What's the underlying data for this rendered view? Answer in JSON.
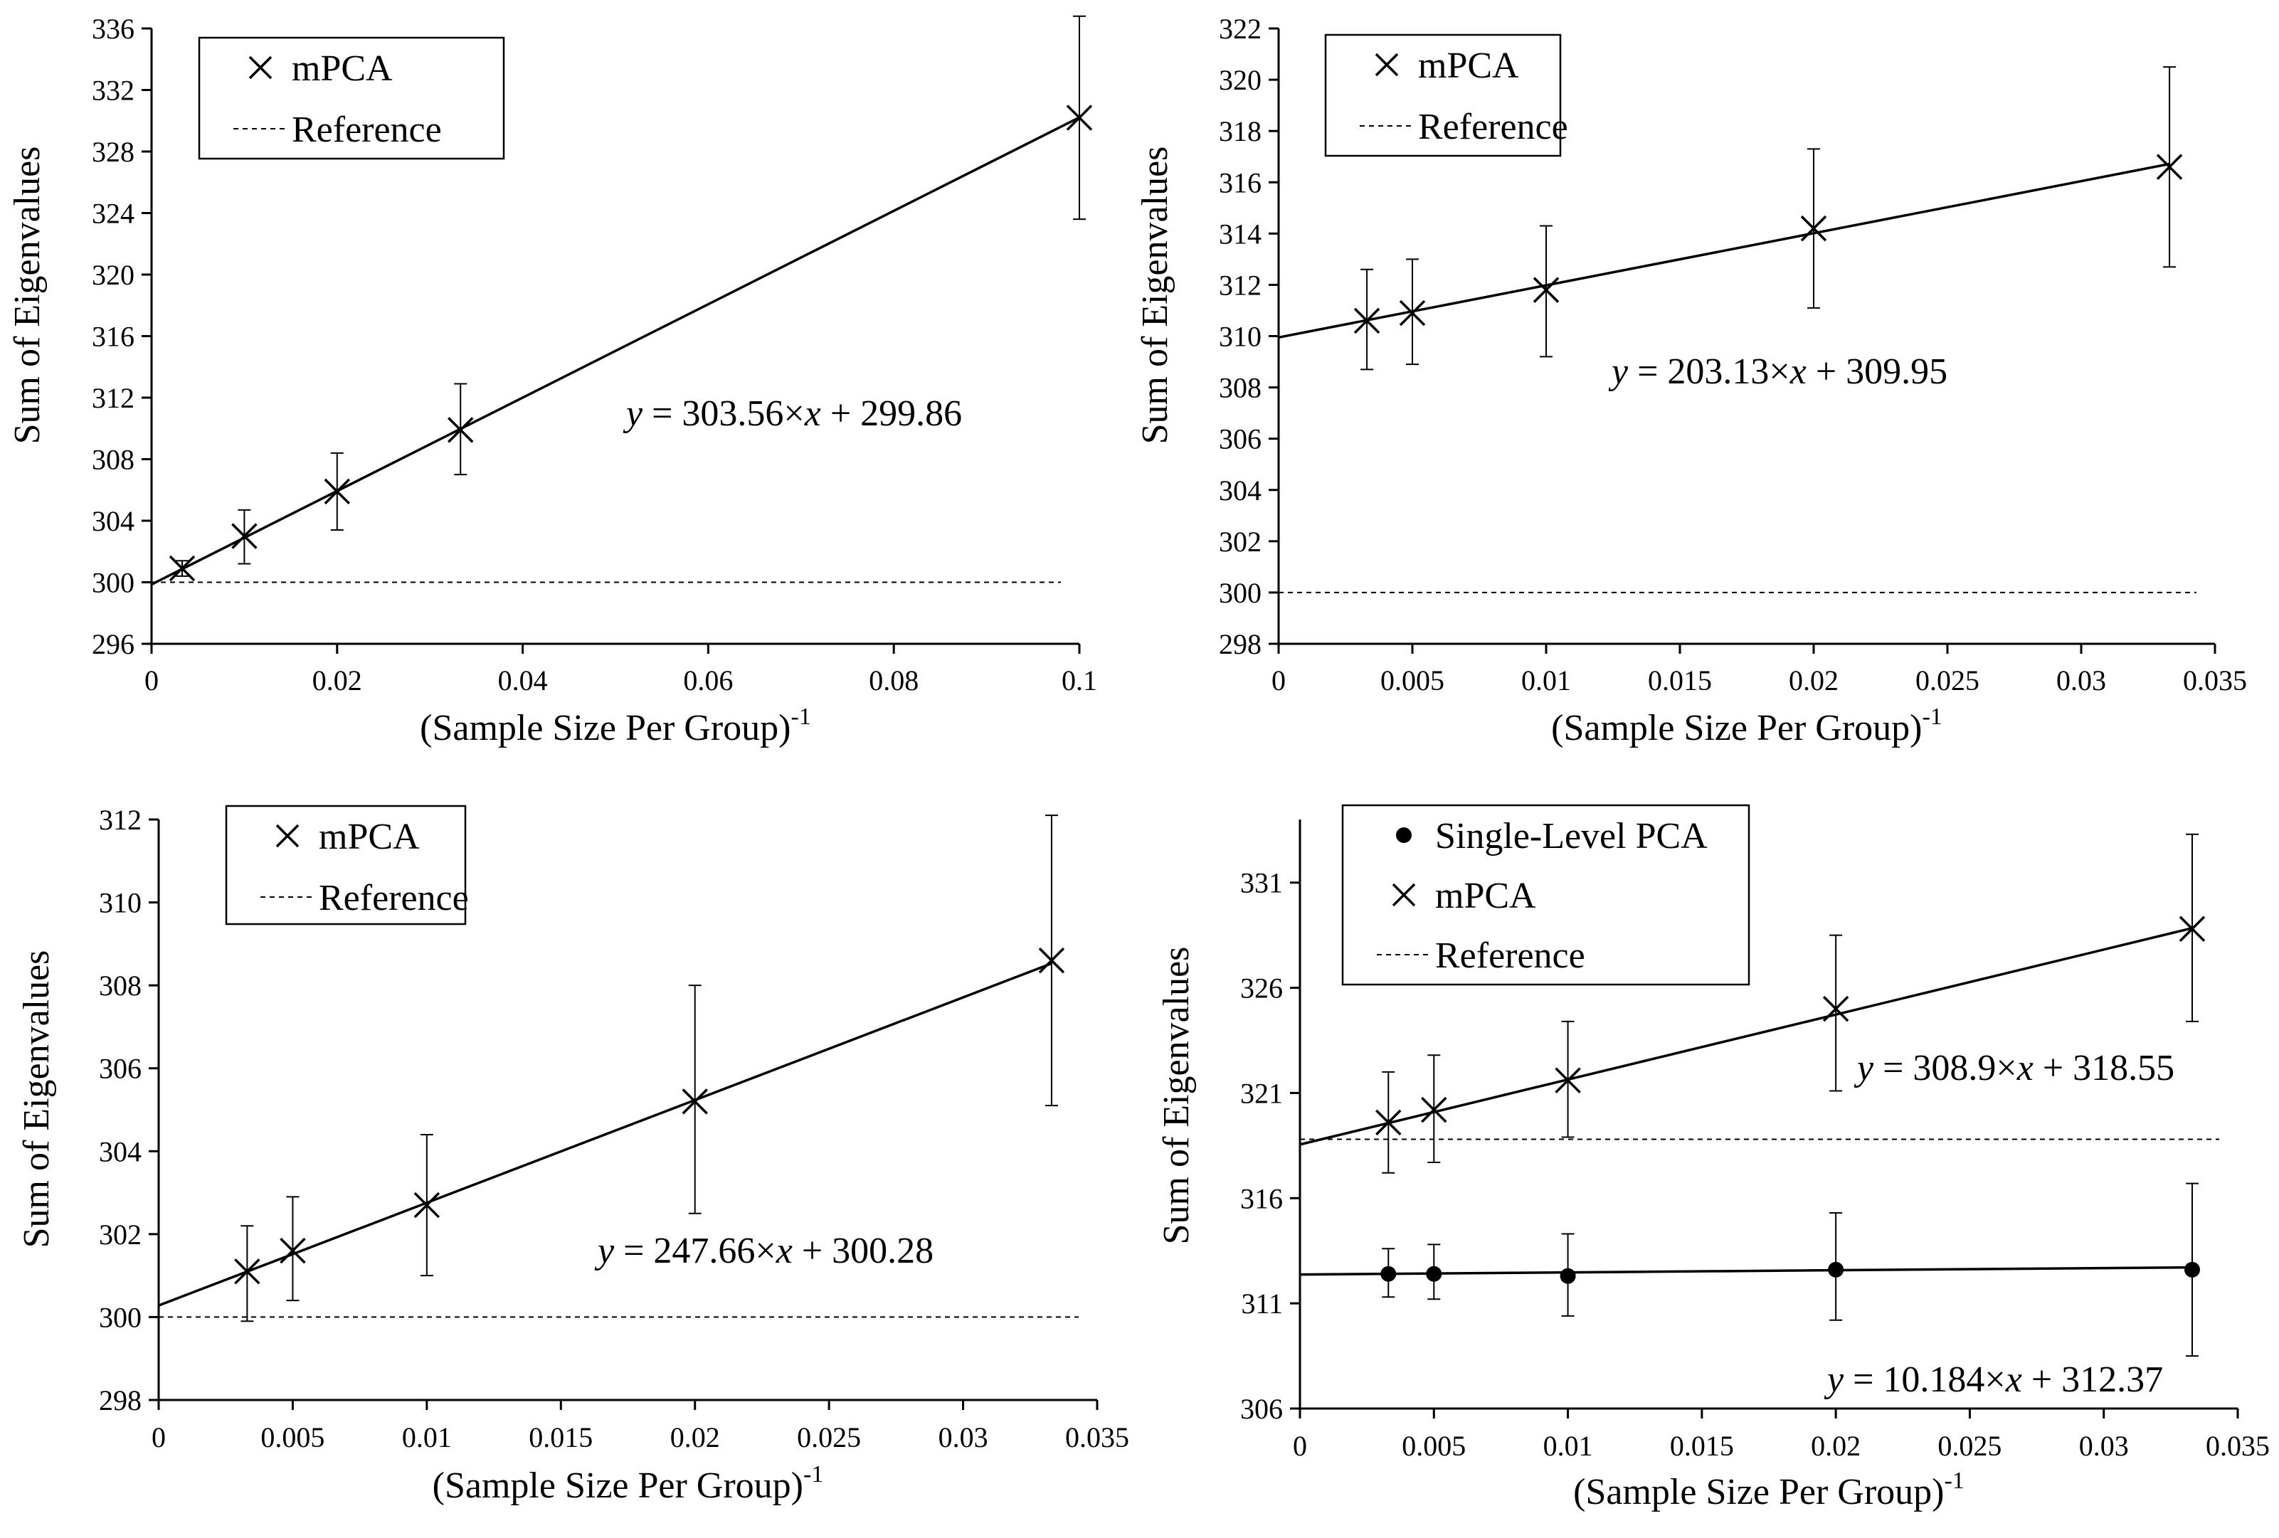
{
  "chart_data": [
    {
      "type": "scatter",
      "xlabel": "(Sample Size Per Group)",
      "xlabel_exponent": "-1",
      "ylabel": "Sum of Eigenvalues",
      "xlim": [
        0,
        0.1
      ],
      "ylim": [
        296,
        336
      ],
      "xticks": [
        0,
        0.02,
        0.04,
        0.06,
        0.08,
        0.1
      ],
      "xtick_labels": [
        "0",
        "0.02",
        "0.04",
        "0.06",
        "0.08",
        "0.1"
      ],
      "yticks": [
        296,
        300,
        304,
        308,
        312,
        316,
        320,
        324,
        328,
        332,
        336
      ],
      "ytick_labels": [
        "296",
        "300",
        "304",
        "308",
        "312",
        "316",
        "320",
        "324",
        "328",
        "332",
        "336"
      ],
      "legend": [
        {
          "label": "mPCA",
          "marker": "x"
        },
        {
          "label": "Reference",
          "marker": "dashed"
        }
      ],
      "legend_position": "top-left",
      "reference": 300,
      "series": [
        {
          "name": "mPCA",
          "marker": "x",
          "x": [
            0.0033,
            0.01,
            0.02,
            0.0333,
            0.1
          ],
          "y": [
            300.9,
            303.0,
            305.9,
            309.9,
            330.2
          ],
          "err_low": [
            300.4,
            301.2,
            303.4,
            307.0,
            323.6
          ],
          "err_high": [
            301.4,
            304.7,
            308.4,
            312.9,
            336.8
          ],
          "fit": {
            "slope": 303.56,
            "intercept": 299.86
          },
          "equation": {
            "lhs": "y",
            "mid": " = 303.56×",
            "var": "x",
            "rhs": " + 299.86"
          }
        }
      ]
    },
    {
      "type": "scatter",
      "xlabel": "(Sample Size Per Group)",
      "xlabel_exponent": "-1",
      "ylabel": "Sum of Eigenvalues",
      "xlim": [
        0,
        0.035
      ],
      "ylim": [
        298,
        322
      ],
      "xticks": [
        0,
        0.005,
        0.01,
        0.015,
        0.02,
        0.025,
        0.03,
        0.035
      ],
      "xtick_labels": [
        "0",
        "0.005",
        "0.01",
        "0.015",
        "0.02",
        "0.025",
        "0.03",
        "0.035"
      ],
      "yticks": [
        298,
        300,
        302,
        304,
        306,
        308,
        310,
        312,
        314,
        316,
        318,
        320,
        322
      ],
      "ytick_labels": [
        "298",
        "300",
        "302",
        "304",
        "306",
        "308",
        "310",
        "312",
        "314",
        "316",
        "318",
        "320",
        "322"
      ],
      "legend": [
        {
          "label": "mPCA",
          "marker": "x"
        },
        {
          "label": "Reference",
          "marker": "dashed"
        }
      ],
      "legend_position": "top-left",
      "reference": 300,
      "series": [
        {
          "name": "mPCA",
          "marker": "x",
          "x": [
            0.0033,
            0.005,
            0.01,
            0.02,
            0.0333
          ],
          "y": [
            310.6,
            310.9,
            311.8,
            314.2,
            316.6
          ],
          "err_low": [
            308.7,
            308.9,
            309.2,
            311.1,
            312.7
          ],
          "err_high": [
            312.6,
            313.0,
            314.3,
            317.3,
            320.5
          ],
          "fit": {
            "slope": 203.13,
            "intercept": 309.95
          },
          "equation": {
            "lhs": "y",
            "mid": " = 203.13×",
            "var": "x",
            "rhs": " + 309.95"
          }
        }
      ]
    },
    {
      "type": "scatter",
      "xlabel": "(Sample Size Per Group)",
      "xlabel_exponent": "-1",
      "ylabel": "Sum of Eigenvalues",
      "xlim": [
        0,
        0.035
      ],
      "ylim": [
        298,
        312
      ],
      "xticks": [
        0,
        0.005,
        0.01,
        0.015,
        0.02,
        0.025,
        0.03,
        0.035
      ],
      "xtick_labels": [
        "0",
        "0.005",
        "0.01",
        "0.015",
        "0.02",
        "0.025",
        "0.03",
        "0.035"
      ],
      "yticks": [
        298,
        300,
        302,
        304,
        306,
        308,
        310,
        312
      ],
      "ytick_labels": [
        "298",
        "300",
        "302",
        "304",
        "306",
        "308",
        "310",
        "312"
      ],
      "legend": [
        {
          "label": "mPCA",
          "marker": "x"
        },
        {
          "label": "Reference",
          "marker": "dashed"
        }
      ],
      "legend_position": "top-left",
      "reference": 300,
      "series": [
        {
          "name": "mPCA",
          "marker": "x",
          "x": [
            0.0033,
            0.005,
            0.01,
            0.02,
            0.0333
          ],
          "y": [
            301.1,
            301.6,
            302.7,
            305.2,
            308.6
          ],
          "err_low": [
            299.9,
            300.4,
            301.0,
            302.5,
            305.1
          ],
          "err_high": [
            302.2,
            302.9,
            304.4,
            308.0,
            312.1
          ],
          "fit": {
            "slope": 247.66,
            "intercept": 300.28
          },
          "equation": {
            "lhs": "y",
            "mid": " = 247.66×",
            "var": "x",
            "rhs": " + 300.28"
          }
        }
      ]
    },
    {
      "type": "scatter",
      "xlabel": "(Sample Size Per Group)",
      "xlabel_exponent": "-1",
      "ylabel": "Sum of Eigenvalues",
      "xlim": [
        0,
        0.035
      ],
      "ylim": [
        306,
        334
      ],
      "xticks": [
        0,
        0.005,
        0.01,
        0.015,
        0.02,
        0.025,
        0.03,
        0.035
      ],
      "xtick_labels": [
        "0",
        "0.005",
        "0.01",
        "0.015",
        "0.02",
        "0.025",
        "0.03",
        "0.035"
      ],
      "yticks": [
        306,
        311,
        316,
        321,
        326,
        331
      ],
      "ytick_labels": [
        "306",
        "311",
        "316",
        "321",
        "326",
        "331"
      ],
      "legend": [
        {
          "label": "Single-Level PCA",
          "marker": "dot"
        },
        {
          "label": "mPCA",
          "marker": "x"
        },
        {
          "label": "Reference",
          "marker": "dashed"
        }
      ],
      "legend_position": "top-left",
      "reference": 318.8,
      "series": [
        {
          "name": "mPCA",
          "marker": "x",
          "x": [
            0.0033,
            0.005,
            0.01,
            0.02,
            0.0333
          ],
          "y": [
            319.6,
            320.2,
            321.6,
            325.0,
            328.8
          ],
          "err_low": [
            317.2,
            317.7,
            318.9,
            321.1,
            324.4
          ],
          "err_high": [
            322.0,
            322.8,
            324.4,
            328.5,
            333.3
          ],
          "fit": {
            "slope": 308.9,
            "intercept": 318.55
          },
          "equation": {
            "lhs": "y",
            "mid": " = 308.9×",
            "var": "x",
            "rhs": " + 318.55"
          }
        },
        {
          "name": "Single-Level PCA",
          "marker": "dot",
          "x": [
            0.0033,
            0.005,
            0.01,
            0.02,
            0.0333
          ],
          "y": [
            312.4,
            312.4,
            312.3,
            312.6,
            312.6
          ],
          "err_low": [
            311.3,
            311.2,
            310.4,
            310.2,
            308.5
          ],
          "err_high": [
            313.6,
            313.8,
            314.3,
            315.3,
            316.7
          ],
          "fit": {
            "slope": 10.184,
            "intercept": 312.37
          },
          "equation": {
            "lhs": "y",
            "mid": " = 10.184×",
            "var": "x",
            "rhs": " + 312.37"
          }
        }
      ]
    }
  ]
}
